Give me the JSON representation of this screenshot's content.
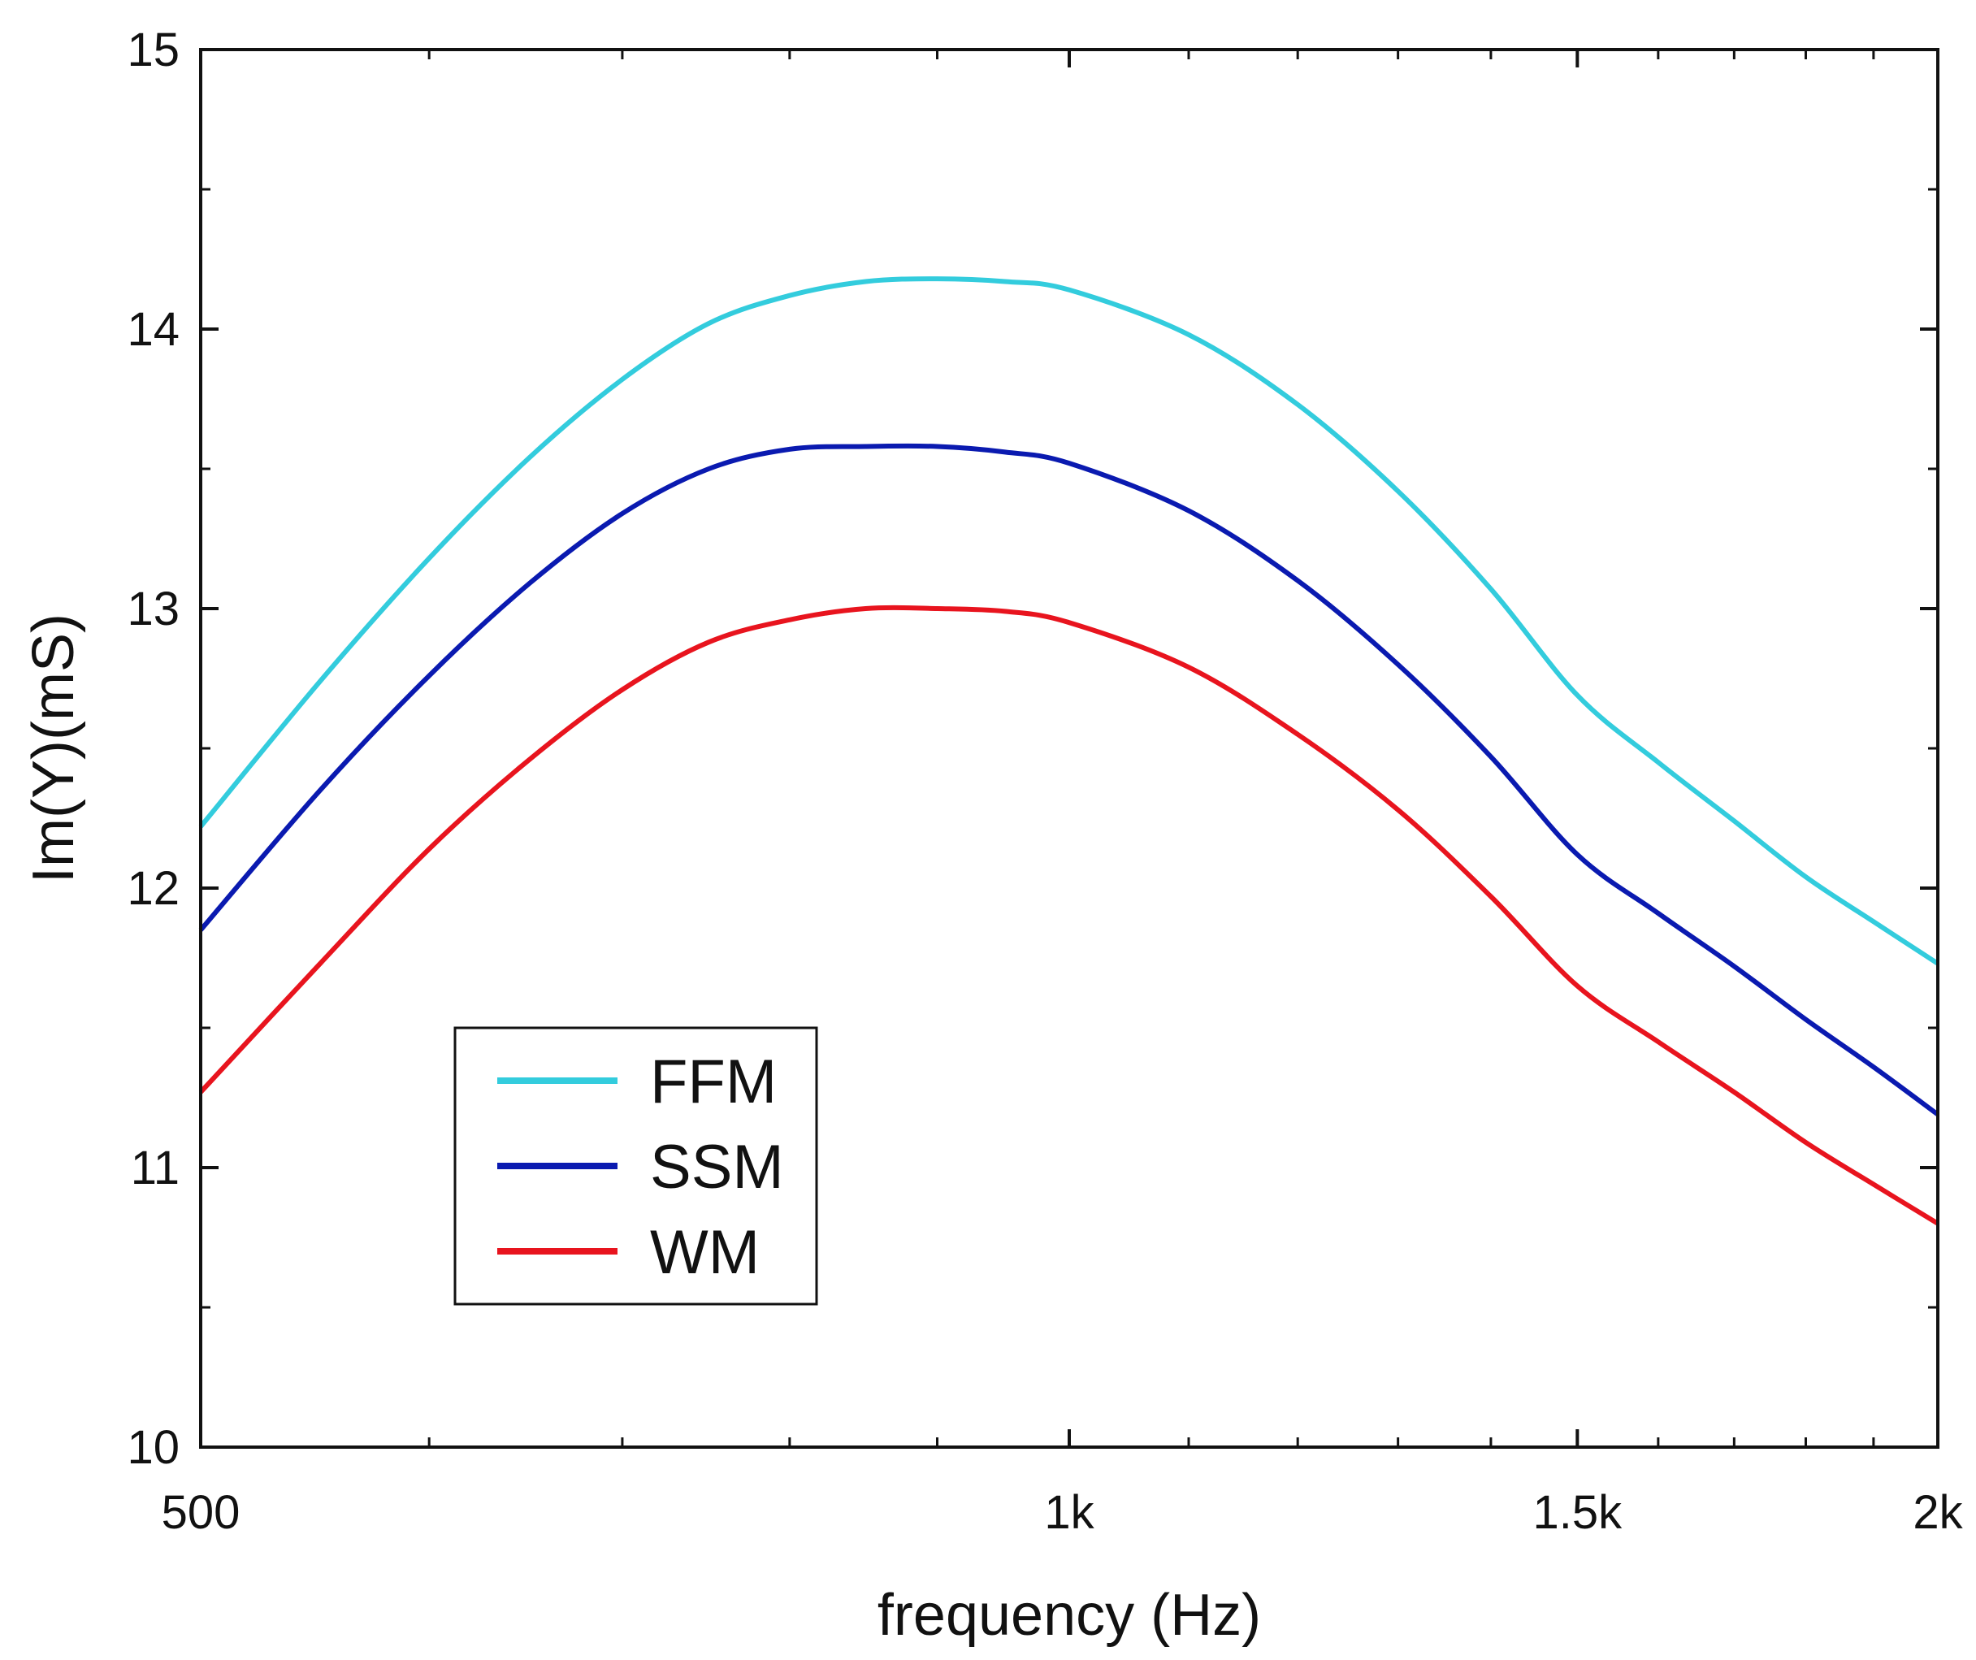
{
  "chart_data": {
    "type": "line",
    "title": "",
    "xlabel": "frequency (Hz)",
    "ylabel": "Im(Y)(mS)",
    "xscale": "log",
    "xlim": [
      500,
      2000
    ],
    "ylim": [
      10,
      15
    ],
    "xticks": [
      {
        "value": 500,
        "label": "500"
      },
      {
        "value": 1000,
        "label": "1k"
      },
      {
        "value": 1500,
        "label": "1.5k"
      },
      {
        "value": 2000,
        "label": "2k"
      }
    ],
    "yticks": [
      {
        "value": 10,
        "label": "10"
      },
      {
        "value": 11,
        "label": "11"
      },
      {
        "value": 12,
        "label": "12"
      },
      {
        "value": 13,
        "label": "13"
      },
      {
        "value": 14,
        "label": "14"
      },
      {
        "value": 15,
        "label": "15"
      }
    ],
    "legend_position": "lower-left",
    "x": [
      500,
      550,
      600,
      650,
      700,
      750,
      800,
      850,
      900,
      950,
      1000,
      1100,
      1200,
      1300,
      1400,
      1500,
      1600,
      1700,
      1800,
      1900,
      2000
    ],
    "series": [
      {
        "name": "FFM",
        "color": "#33ccdd",
        "values": [
          12.22,
          12.74,
          13.18,
          13.54,
          13.82,
          14.02,
          14.12,
          14.17,
          14.18,
          14.17,
          14.14,
          13.98,
          13.73,
          13.42,
          13.07,
          12.69,
          12.45,
          12.24,
          12.04,
          11.88,
          11.73
        ]
      },
      {
        "name": "SSM",
        "color": "#0a1ab0",
        "values": [
          11.85,
          12.35,
          12.76,
          13.09,
          13.34,
          13.5,
          13.57,
          13.58,
          13.58,
          13.56,
          13.52,
          13.35,
          13.1,
          12.8,
          12.47,
          12.12,
          11.91,
          11.72,
          11.53,
          11.36,
          11.19
        ]
      },
      {
        "name": "WM",
        "color": "#e8141e",
        "values": [
          11.27,
          11.73,
          12.14,
          12.46,
          12.71,
          12.88,
          12.96,
          13.0,
          13.0,
          12.99,
          12.95,
          12.79,
          12.55,
          12.28,
          11.97,
          11.65,
          11.45,
          11.27,
          11.09,
          10.94,
          10.8
        ]
      }
    ]
  }
}
